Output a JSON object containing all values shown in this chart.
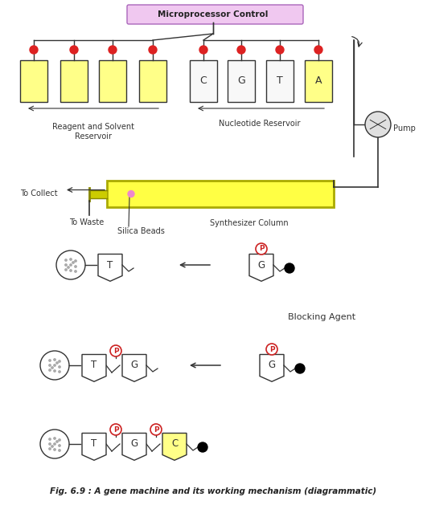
{
  "title": "Fig. 6.9 : A gene machine and its working mechanism (diagrammatic)",
  "microprocessor_label": "Microprocessor Control",
  "microprocessor_box_color": "#f0c8f0",
  "reagent_label": "Reagent and Solvent\nReservoir",
  "nucleotide_label": "Nucleotide Reservoir",
  "pump_label": "Pump",
  "to_collect_label": "To Collect",
  "to_waste_label": "To Waste",
  "silica_label": "Silica Beads",
  "synth_label": "Synthesizer Column",
  "blocking_label": "Blocking Agent",
  "reservoir_yellow_color": "#ffff88",
  "nucleotide_labels": [
    "C",
    "G",
    "T",
    "A"
  ],
  "background_color": "#ffffff",
  "line_color": "#333333",
  "red_dot_color": "#dd2222",
  "pink_dot_color": "#ee88cc",
  "yellow_color": "#ffff44",
  "nucleotide_bg": "#f8f8f8",
  "mp_border_color": "#aa66bb"
}
